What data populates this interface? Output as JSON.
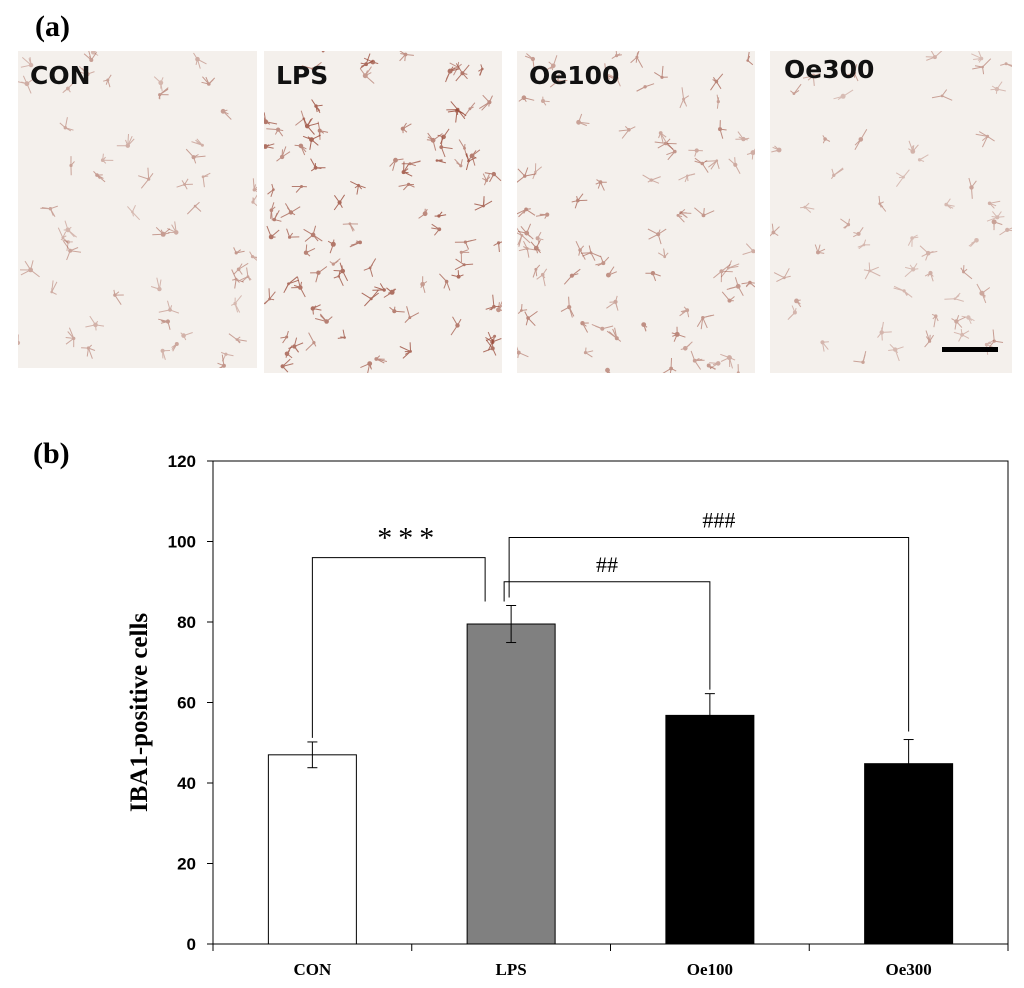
{
  "panel_a_label": "(a)",
  "panel_b_label": "(b)",
  "micrographs": [
    {
      "label": "CON"
    },
    {
      "label": "LPS"
    },
    {
      "label": "Oe100"
    },
    {
      "label": "Oe300"
    }
  ],
  "colors": {
    "con_bar": "#ffffff",
    "lps_bar": "#808080",
    "oe_bar": "#000000",
    "stain": "#9a4b3a",
    "tissue": "#f4f0ec"
  },
  "chart_data": {
    "type": "bar",
    "categories": [
      "CON",
      "LPS",
      "Oe100",
      "Oe300"
    ],
    "values": [
      47,
      79.5,
      56.8,
      44.8
    ],
    "errors": [
      3.2,
      4.6,
      5.4,
      6.0
    ],
    "ylabel": "IBA1-positive cells",
    "ylim": [
      0,
      120
    ],
    "yticks": [
      "0",
      "20",
      "40",
      "60",
      "80",
      "100",
      "120"
    ],
    "grid": false,
    "annotations": [
      {
        "text": "***",
        "from": "CON",
        "to": "LPS"
      },
      {
        "text": "##",
        "from": "LPS",
        "to": "Oe100"
      },
      {
        "text": "###",
        "from": "LPS",
        "to": "Oe300"
      }
    ]
  }
}
